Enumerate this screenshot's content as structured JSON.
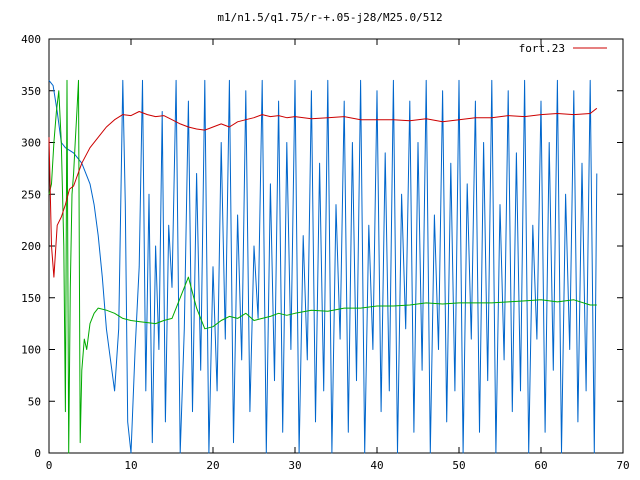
{
  "chart_data": {
    "type": "line",
    "title": "m1/n1.5/q1.75/r-+.05-j28/M25.0/512",
    "xlabel": "",
    "ylabel": "",
    "xlim": [
      0,
      70
    ],
    "ylim": [
      0,
      400
    ],
    "x_ticks": [
      0,
      10,
      20,
      30,
      40,
      50,
      60,
      70
    ],
    "y_ticks": [
      0,
      50,
      100,
      150,
      200,
      250,
      300,
      350,
      400
    ],
    "x_tick_labels": [
      "0",
      "10",
      "20",
      "30",
      "40",
      "50",
      "60",
      "70"
    ],
    "y_tick_labels": [
      "0",
      "50",
      "100",
      "150",
      "200",
      "250",
      "300",
      "350",
      "400"
    ],
    "grid": false,
    "legend": "top-right",
    "series": [
      {
        "name": "fort.23",
        "color": "#cc0000",
        "in_legend": true,
        "x": [
          0,
          0.3,
          0.6,
          1,
          1.5,
          2,
          2.5,
          3,
          4,
          5,
          6,
          7,
          8,
          9,
          10,
          11,
          12,
          13,
          14,
          15,
          16,
          17,
          18,
          19,
          20,
          21,
          22,
          23,
          24,
          25,
          26,
          27,
          28,
          29,
          30,
          32,
          34,
          36,
          38,
          40,
          42,
          44,
          46,
          48,
          50,
          52,
          54,
          56,
          58,
          60,
          62,
          64,
          66,
          66.8
        ],
        "y": [
          305,
          200,
          170,
          220,
          228,
          240,
          255,
          258,
          280,
          295,
          305,
          315,
          322,
          327,
          326,
          330,
          327,
          325,
          326,
          322,
          318,
          315,
          313,
          312,
          315,
          318,
          315,
          320,
          322,
          324,
          327,
          325,
          326,
          324,
          325,
          323,
          324,
          325,
          322,
          322,
          322,
          321,
          323,
          320,
          322,
          324,
          324,
          326,
          325,
          327,
          328,
          327,
          328,
          333
        ]
      },
      {
        "name": "",
        "color": "#0066cc",
        "in_legend": false,
        "x": [
          0,
          0.5,
          1,
          1.5,
          2,
          3,
          4,
          5,
          5.5,
          6,
          6.5,
          7,
          7.5,
          8,
          8.5,
          9,
          9.3,
          9.6,
          10,
          10.5,
          11,
          11.4,
          11.8,
          12.2,
          12.6,
          13,
          13.4,
          13.8,
          14.2,
          14.6,
          15,
          15.5,
          16,
          16.5,
          17,
          17.5,
          18,
          18.5,
          19,
          19.5,
          20,
          20.5,
          21,
          21.5,
          22,
          22.5,
          23,
          23.5,
          24,
          24.5,
          25,
          25.5,
          26,
          26.5,
          27,
          27.5,
          28,
          28.5,
          29,
          29.5,
          30,
          30.5,
          31,
          31.5,
          32,
          32.5,
          33,
          33.5,
          34,
          34.5,
          35,
          35.5,
          36,
          36.5,
          37,
          37.5,
          38,
          38.5,
          39,
          39.5,
          40,
          40.5,
          41,
          41.5,
          42,
          42.5,
          43,
          43.5,
          44,
          44.5,
          45,
          45.5,
          46,
          46.5,
          47,
          47.5,
          48,
          48.5,
          49,
          49.5,
          50,
          50.5,
          51,
          51.5,
          52,
          52.5,
          53,
          53.5,
          54,
          54.5,
          55,
          55.5,
          56,
          56.5,
          57,
          57.5,
          58,
          58.5,
          59,
          59.5,
          60,
          60.5,
          61,
          61.5,
          62,
          62.5,
          63,
          63.5,
          64,
          64.5,
          65,
          65.5,
          66,
          66.5,
          66.8
        ],
        "y": [
          360,
          355,
          330,
          300,
          295,
          290,
          280,
          260,
          240,
          210,
          170,
          120,
          90,
          60,
          120,
          360,
          240,
          30,
          0,
          100,
          180,
          360,
          60,
          250,
          10,
          200,
          100,
          330,
          30,
          220,
          160,
          360,
          0,
          120,
          340,
          40,
          270,
          80,
          360,
          0,
          180,
          60,
          300,
          110,
          360,
          10,
          230,
          90,
          350,
          40,
          200,
          130,
          360,
          0,
          260,
          70,
          340,
          20,
          300,
          100,
          360,
          0,
          210,
          90,
          350,
          30,
          280,
          60,
          360,
          0,
          240,
          110,
          340,
          20,
          300,
          70,
          360,
          0,
          220,
          100,
          350,
          40,
          290,
          60,
          360,
          0,
          250,
          120,
          340,
          20,
          300,
          80,
          360,
          0,
          230,
          100,
          350,
          30,
          280,
          60,
          360,
          0,
          260,
          110,
          340,
          20,
          300,
          70,
          360,
          0,
          240,
          90,
          350,
          40,
          290,
          60,
          360,
          0,
          220,
          110,
          340,
          20,
          300,
          80,
          360,
          0,
          250,
          100,
          350,
          30,
          280,
          60,
          360,
          0,
          270
        ]
      },
      {
        "name": "",
        "color": "#00aa00",
        "in_legend": false,
        "x": [
          0,
          0.3,
          0.6,
          0.9,
          1.2,
          1.5,
          1.8,
          2.0,
          2.2,
          2.4,
          2.6,
          2.8,
          3.0,
          3.2,
          3.4,
          3.6,
          3.8,
          4.0,
          4.3,
          4.6,
          5,
          5.5,
          6,
          7,
          8,
          9,
          10,
          11,
          12,
          13,
          14,
          15,
          16,
          17,
          18,
          19,
          20,
          21,
          22,
          23,
          24,
          25,
          26,
          27,
          28,
          29,
          30,
          32,
          34,
          36,
          38,
          40,
          42,
          44,
          46,
          48,
          50,
          52,
          54,
          56,
          58,
          60,
          62,
          64,
          66,
          66.8
        ],
        "y": [
          250,
          260,
          300,
          330,
          350,
          300,
          200,
          40,
          360,
          0,
          160,
          250,
          270,
          300,
          330,
          360,
          10,
          80,
          110,
          100,
          125,
          135,
          140,
          138,
          135,
          130,
          128,
          127,
          126,
          125,
          128,
          130,
          150,
          170,
          140,
          120,
          122,
          128,
          132,
          130,
          135,
          128,
          130,
          132,
          135,
          133,
          135,
          138,
          137,
          140,
          140,
          142,
          142,
          143,
          145,
          144,
          145,
          145,
          145,
          146,
          147,
          148,
          146,
          148,
          143,
          143
        ]
      }
    ]
  }
}
